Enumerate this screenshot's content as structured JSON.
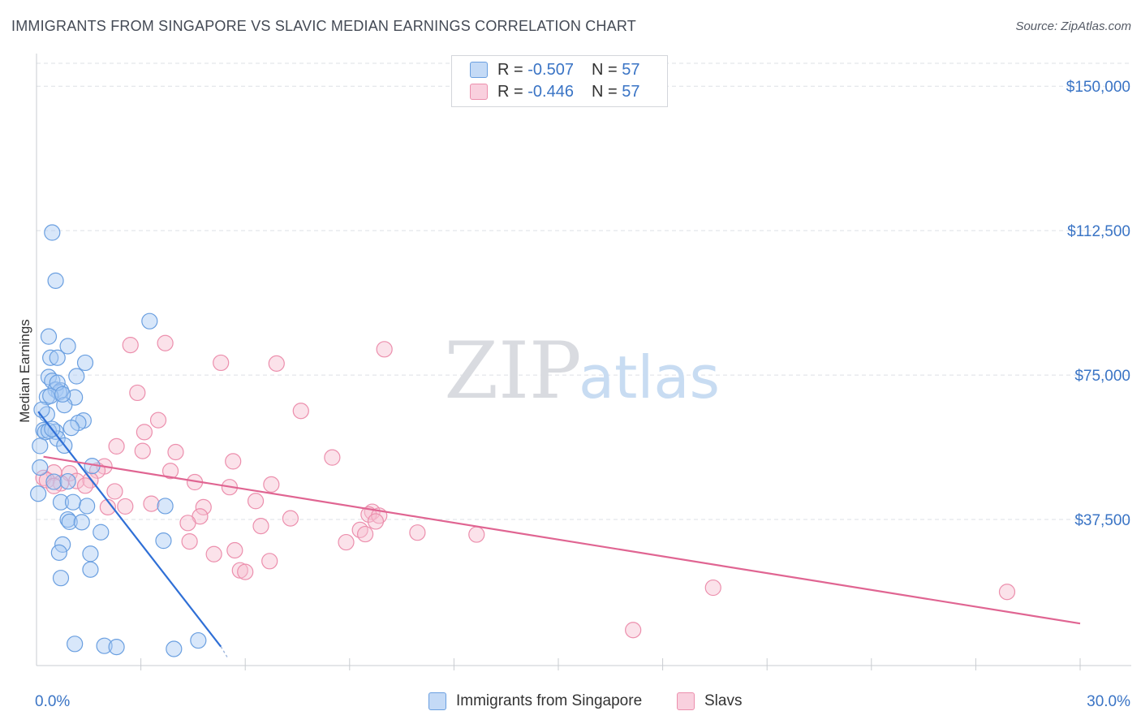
{
  "title": "IMMIGRANTS FROM SINGAPORE VS SLAVIC MEDIAN EARNINGS CORRELATION CHART",
  "source": "Source: ZipAtlas.com",
  "watermark": {
    "zip": "ZIP",
    "atlas": "atlas"
  },
  "colors": {
    "blue_fill": "#a9c9f3",
    "blue_stroke": "#6a9fe0",
    "blue_line": "#2f6fd6",
    "pink_fill": "#f7bfd1",
    "pink_stroke": "#ec8fad",
    "pink_line": "#e06592",
    "axis_label": "#3a74c5",
    "grid": "#dde0e5"
  },
  "legend": {
    "rows": [
      {
        "r_label": "R =",
        "r_value": "-0.507",
        "n_label": "N =",
        "n_value": "57"
      },
      {
        "r_label": "R =",
        "r_value": "-0.446",
        "n_label": "N =",
        "n_value": "57"
      }
    ]
  },
  "chart_data": {
    "type": "scatter",
    "title": "IMMIGRANTS FROM SINGAPORE VS SLAVIC MEDIAN EARNINGS CORRELATION CHART",
    "xlabel": "",
    "ylabel": "Median Earnings",
    "xlim": [
      0,
      30
    ],
    "ylim": [
      0,
      157000
    ],
    "x_tick_labels": {
      "left": "0.0%",
      "right": "30.0%"
    },
    "y_ticks": [
      {
        "value": 37500,
        "label": "$37,500"
      },
      {
        "value": 75000,
        "label": "$75,000"
      },
      {
        "value": 112500,
        "label": "$112,500"
      },
      {
        "value": 150000,
        "label": "$150,000"
      }
    ],
    "series": [
      {
        "name": "Immigrants from Singapore",
        "r": -0.507,
        "n": 57,
        "trend": {
          "x": [
            0.05,
            5.3
          ],
          "y": [
            65500,
            4500
          ],
          "dash_to": [
            5.5,
            1500
          ]
        },
        "points": [
          [
            0.45,
            112000
          ],
          [
            0.55,
            99500
          ],
          [
            3.25,
            89000
          ],
          [
            0.35,
            85000
          ],
          [
            0.9,
            82500
          ],
          [
            0.4,
            79500
          ],
          [
            0.6,
            79500
          ],
          [
            1.4,
            78200
          ],
          [
            0.35,
            74500
          ],
          [
            0.45,
            73500
          ],
          [
            1.15,
            74700
          ],
          [
            0.55,
            71200
          ],
          [
            0.7,
            71000
          ],
          [
            0.65,
            70500
          ],
          [
            0.3,
            69300
          ],
          [
            0.4,
            69600
          ],
          [
            1.1,
            69200
          ],
          [
            0.8,
            67200
          ],
          [
            0.3,
            64800
          ],
          [
            1.35,
            63200
          ],
          [
            1.2,
            62600
          ],
          [
            1.0,
            61300
          ],
          [
            0.2,
            60700
          ],
          [
            0.25,
            60200
          ],
          [
            0.55,
            60300
          ],
          [
            0.6,
            58500
          ],
          [
            0.1,
            56600
          ],
          [
            0.8,
            56700
          ],
          [
            0.1,
            51000
          ],
          [
            1.6,
            51400
          ],
          [
            0.5,
            47300
          ],
          [
            0.9,
            47400
          ],
          [
            0.05,
            44200
          ],
          [
            0.7,
            42000
          ],
          [
            1.05,
            42000
          ],
          [
            1.45,
            41000
          ],
          [
            3.7,
            41000
          ],
          [
            0.9,
            37500
          ],
          [
            0.95,
            36900
          ],
          [
            1.3,
            36800
          ],
          [
            1.85,
            34200
          ],
          [
            3.65,
            32000
          ],
          [
            0.75,
            31000
          ],
          [
            0.65,
            28900
          ],
          [
            1.55,
            28600
          ],
          [
            1.55,
            24500
          ],
          [
            0.7,
            22300
          ],
          [
            1.1,
            5200
          ],
          [
            1.95,
            4700
          ],
          [
            2.3,
            4400
          ],
          [
            3.95,
            3900
          ],
          [
            4.65,
            6100
          ],
          [
            0.6,
            73000
          ],
          [
            0.75,
            70000
          ],
          [
            0.15,
            66000
          ],
          [
            0.35,
            60500
          ],
          [
            0.45,
            61000
          ]
        ]
      },
      {
        "name": "Slavs",
        "r": -0.446,
        "n": 57,
        "trend": {
          "x": [
            0.2,
            30.0
          ],
          "y": [
            53800,
            10500
          ]
        },
        "points": [
          [
            3.7,
            83300
          ],
          [
            2.7,
            82800
          ],
          [
            10.0,
            81700
          ],
          [
            5.3,
            78200
          ],
          [
            6.9,
            78000
          ],
          [
            2.9,
            70400
          ],
          [
            7.6,
            65700
          ],
          [
            3.5,
            63300
          ],
          [
            3.1,
            60200
          ],
          [
            2.3,
            56500
          ],
          [
            3.05,
            55300
          ],
          [
            4.0,
            55000
          ],
          [
            8.5,
            53600
          ],
          [
            5.65,
            52600
          ],
          [
            1.95,
            51300
          ],
          [
            0.5,
            49700
          ],
          [
            0.95,
            49500
          ],
          [
            1.75,
            50200
          ],
          [
            3.85,
            50100
          ],
          [
            0.2,
            48300
          ],
          [
            0.3,
            47700
          ],
          [
            0.7,
            46900
          ],
          [
            1.15,
            47500
          ],
          [
            1.55,
            47700
          ],
          [
            4.55,
            47200
          ],
          [
            6.75,
            46600
          ],
          [
            1.4,
            46300
          ],
          [
            5.55,
            45900
          ],
          [
            0.5,
            46200
          ],
          [
            2.25,
            44800
          ],
          [
            6.3,
            42300
          ],
          [
            3.3,
            41600
          ],
          [
            2.55,
            40900
          ],
          [
            2.05,
            40700
          ],
          [
            4.8,
            40700
          ],
          [
            9.65,
            39500
          ],
          [
            9.55,
            38800
          ],
          [
            4.7,
            38300
          ],
          [
            7.3,
            37800
          ],
          [
            9.85,
            38500
          ],
          [
            4.35,
            36600
          ],
          [
            9.75,
            37000
          ],
          [
            6.45,
            35800
          ],
          [
            9.3,
            34800
          ],
          [
            10.95,
            34100
          ],
          [
            9.45,
            33700
          ],
          [
            12.65,
            33600
          ],
          [
            4.4,
            31800
          ],
          [
            8.9,
            31600
          ],
          [
            5.7,
            29500
          ],
          [
            5.1,
            28500
          ],
          [
            6.7,
            26700
          ],
          [
            5.85,
            24300
          ],
          [
            6.0,
            23900
          ],
          [
            19.45,
            19800
          ],
          [
            27.9,
            18700
          ],
          [
            17.15,
            8800
          ]
        ]
      }
    ]
  }
}
